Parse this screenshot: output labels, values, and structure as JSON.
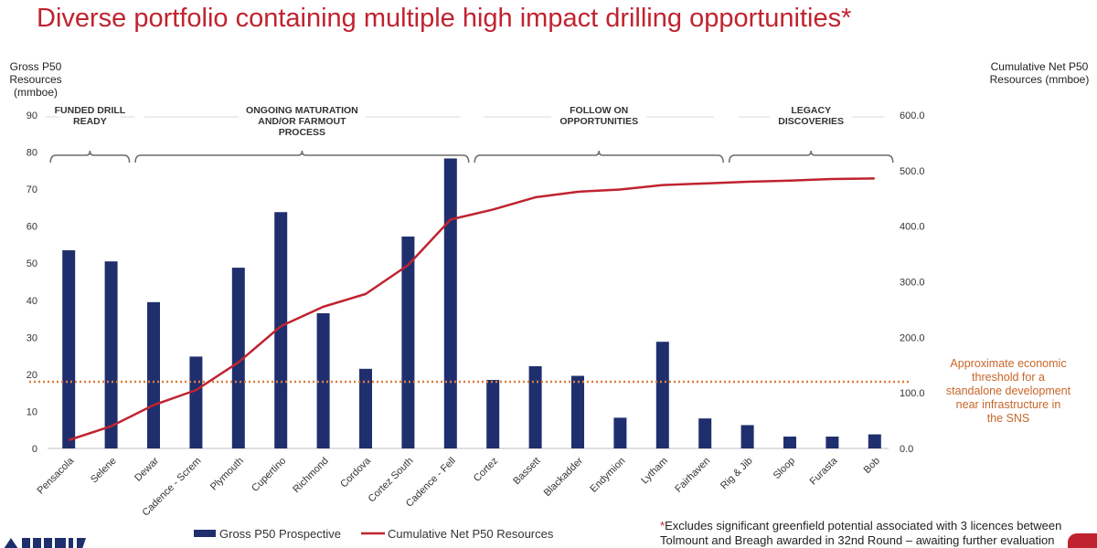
{
  "slide": {
    "title": "Diverse portfolio containing multiple high impact drilling opportunities*",
    "footnote_star": "*",
    "footnote_text": "Excludes significant greenfield potential associated with 3 licences between Tolmount and Breagh awarded in 32nd Round – awaiting further evaluation"
  },
  "colors": {
    "title": "#c0232f",
    "bars": "#1f2f6e",
    "line": "#c0232f",
    "threshold": "#e07b39",
    "threshold_text": "#c8662a"
  },
  "chart_data": {
    "type": "bar",
    "categories": [
      "Pensacola",
      "Selene",
      "Dewar",
      "Cadence - Screm",
      "Plymouth",
      "Cupertino",
      "Richmond",
      "Cordova",
      "Cortez South",
      "Cadence - Fell",
      "Cortez",
      "Bassett",
      "Blackadder",
      "Endymion",
      "Lytham",
      "Fairhaven",
      "Rig & Jib",
      "Sloop",
      "Furasta",
      "Bob"
    ],
    "series": [
      {
        "name": "Gross P50 Prospective",
        "type": "bar",
        "axis": "left",
        "values": [
          53.5,
          50.5,
          39.5,
          24.8,
          48.8,
          63.8,
          36.5,
          21.5,
          57.2,
          78.3,
          18.5,
          22.2,
          19.6,
          8.3,
          28.8,
          8.1,
          6.3,
          3.2,
          3.2,
          3.8
        ]
      },
      {
        "name": "Cumulative Net P50 Resources",
        "type": "line",
        "axis": "right",
        "values": [
          15,
          40,
          78,
          105,
          155,
          220,
          255,
          278,
          330,
          412,
          430,
          452,
          462,
          466,
          474,
          477,
          480,
          482,
          485,
          486
        ]
      }
    ],
    "y_left": {
      "label": "Gross P50 Resources (mmboe)",
      "ticks": [
        "0",
        "10",
        "20",
        "30",
        "40",
        "50",
        "60",
        "70",
        "80",
        "90"
      ],
      "range": [
        0,
        90
      ]
    },
    "y_right": {
      "label": "Cumulative Net P50 Resources (mmboe)",
      "ticks": [
        "0.0",
        "100.0",
        "200.0",
        "300.0",
        "400.0",
        "500.0",
        "600.0"
      ],
      "range": [
        0,
        600
      ]
    },
    "threshold": {
      "value": 18,
      "label": "Approximate economic threshold for a standalone development near infrastructure in the SNS"
    },
    "groups": [
      {
        "label": "FUNDED DRILL READY",
        "from": 0,
        "to": 1
      },
      {
        "label": "ONGOING MATURATION AND/OR FARMOUT PROCESS",
        "from": 2,
        "to": 9
      },
      {
        "label": "FOLLOW ON OPPORTUNITIES",
        "from": 10,
        "to": 15
      },
      {
        "label": "LEGACY DISCOVERIES",
        "from": 16,
        "to": 19
      }
    ],
    "legend_position": "bottom",
    "grid": false
  }
}
